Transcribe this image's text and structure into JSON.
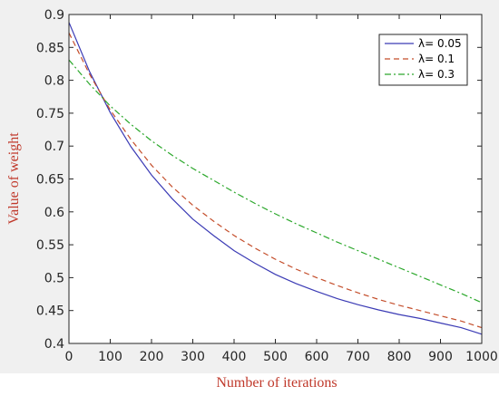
{
  "chart_data": {
    "type": "line",
    "xlabel": "Number of iterations",
    "ylabel": "Value of weight",
    "xlim": [
      0,
      1000
    ],
    "ylim": [
      0.4,
      0.9
    ],
    "xticks": [
      "0",
      "100",
      "200",
      "300",
      "400",
      "500",
      "600",
      "700",
      "800",
      "900",
      "1000"
    ],
    "yticks": [
      "0.4",
      "0.45",
      "0.5",
      "0.55",
      "0.6",
      "0.65",
      "0.7",
      "0.75",
      "0.8",
      "0.85",
      "0.9"
    ],
    "legend_position": "top-right",
    "grid": false,
    "colors": {
      "label": "#c0392b",
      "axes": "#262626"
    },
    "series": [
      {
        "name": "λ= 0.05",
        "color": "#3b3bb5",
        "style": "solid",
        "x": [
          0,
          50,
          100,
          150,
          200,
          250,
          300,
          350,
          400,
          450,
          500,
          550,
          600,
          650,
          700,
          750,
          800,
          850,
          900,
          950,
          1000
        ],
        "y": [
          0.888,
          0.813,
          0.751,
          0.699,
          0.656,
          0.62,
          0.589,
          0.564,
          0.541,
          0.522,
          0.505,
          0.491,
          0.479,
          0.468,
          0.459,
          0.451,
          0.444,
          0.438,
          0.431,
          0.424,
          0.414
        ]
      },
      {
        "name": "λ= 0.1",
        "color": "#c44e2b",
        "style": "dashed",
        "x": [
          0,
          50,
          100,
          150,
          200,
          250,
          300,
          350,
          400,
          450,
          500,
          550,
          600,
          650,
          700,
          750,
          800,
          850,
          900,
          950,
          1000
        ],
        "y": [
          0.872,
          0.809,
          0.755,
          0.71,
          0.671,
          0.638,
          0.61,
          0.586,
          0.564,
          0.545,
          0.528,
          0.513,
          0.5,
          0.488,
          0.477,
          0.467,
          0.458,
          0.45,
          0.442,
          0.434,
          0.424
        ]
      },
      {
        "name": "λ= 0.3",
        "color": "#2ca82c",
        "style": "dashdot",
        "x": [
          0,
          50,
          100,
          150,
          200,
          250,
          300,
          350,
          400,
          450,
          500,
          550,
          600,
          650,
          700,
          750,
          800,
          850,
          900,
          950,
          1000
        ],
        "y": [
          0.831,
          0.794,
          0.761,
          0.733,
          0.708,
          0.686,
          0.666,
          0.648,
          0.63,
          0.613,
          0.597,
          0.582,
          0.568,
          0.554,
          0.541,
          0.528,
          0.515,
          0.502,
          0.489,
          0.476,
          0.462
        ]
      }
    ]
  }
}
